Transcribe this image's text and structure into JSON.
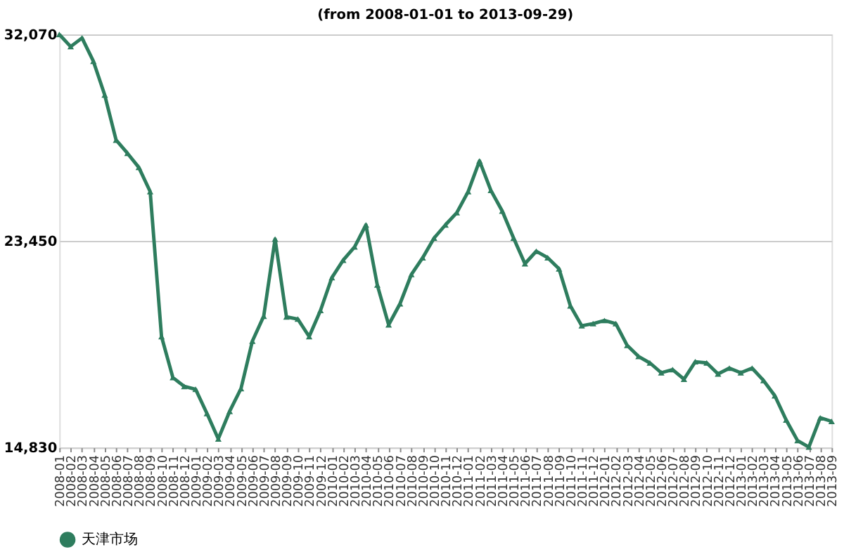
{
  "chart_data": {
    "type": "line",
    "title": "(from 2008-01-01 to 2013-09-29)",
    "categories": [
      "2008-01",
      "2008-02",
      "2008-03",
      "2008-04",
      "2008-05",
      "2008-06",
      "2008-07",
      "2008-08",
      "2008-09",
      "2008-10",
      "2008-11",
      "2008-12",
      "2009-01",
      "2009-02",
      "2009-03",
      "2009-04",
      "2009-05",
      "2009-06",
      "2009-07",
      "2009-08",
      "2009-09",
      "2009-10",
      "2009-11",
      "2009-12",
      "2010-01",
      "2010-02",
      "2010-03",
      "2010-04",
      "2010-05",
      "2010-06",
      "2010-07",
      "2010-08",
      "2010-09",
      "2010-10",
      "2010-11",
      "2010-12",
      "2011-01",
      "2011-02",
      "2011-03",
      "2011-04",
      "2011-05",
      "2011-06",
      "2011-07",
      "2011-08",
      "2011-09",
      "2011-10",
      "2011-11",
      "2011-12",
      "2012-01",
      "2012-02",
      "2012-03",
      "2012-04",
      "2012-05",
      "2012-06",
      "2012-07",
      "2012-08",
      "2012-09",
      "2012-10",
      "2012-11",
      "2012-12",
      "2013-01",
      "2013-02",
      "2013-03",
      "2013-04",
      "2013-05",
      "2013-06",
      "2013-07",
      "2013-08",
      "2013-09"
    ],
    "series": [
      {
        "name": "天津市场",
        "color": "#2e7d5e",
        "values": [
          32070,
          31560,
          31920,
          30950,
          29540,
          27660,
          27110,
          26520,
          25510,
          19460,
          17750,
          17380,
          17260,
          16250,
          15190,
          16340,
          17290,
          19270,
          20310,
          23530,
          20280,
          20190,
          19460,
          20550,
          21920,
          22650,
          23200,
          24120,
          21610,
          19950,
          20830,
          22050,
          22750,
          23570,
          24120,
          24630,
          25510,
          26790,
          25560,
          24700,
          23570,
          22500,
          23020,
          22750,
          22290,
          20740,
          19910,
          20000,
          20130,
          20000,
          19090,
          18630,
          18360,
          17950,
          18080,
          17680,
          18410,
          18360,
          17900,
          18140,
          17950,
          18140,
          17630,
          16990,
          15980,
          15120,
          14850,
          16070,
          15920
        ]
      }
    ],
    "ylim": [
      14830,
      32070
    ],
    "yticks": [
      {
        "value": 14830,
        "label": "14,830"
      },
      {
        "value": 23450,
        "label": "23,450"
      },
      {
        "value": 32070,
        "label": "32,070"
      }
    ],
    "grid": "y",
    "legend": "bottom",
    "marker": "triangle",
    "line_style": "solid"
  }
}
